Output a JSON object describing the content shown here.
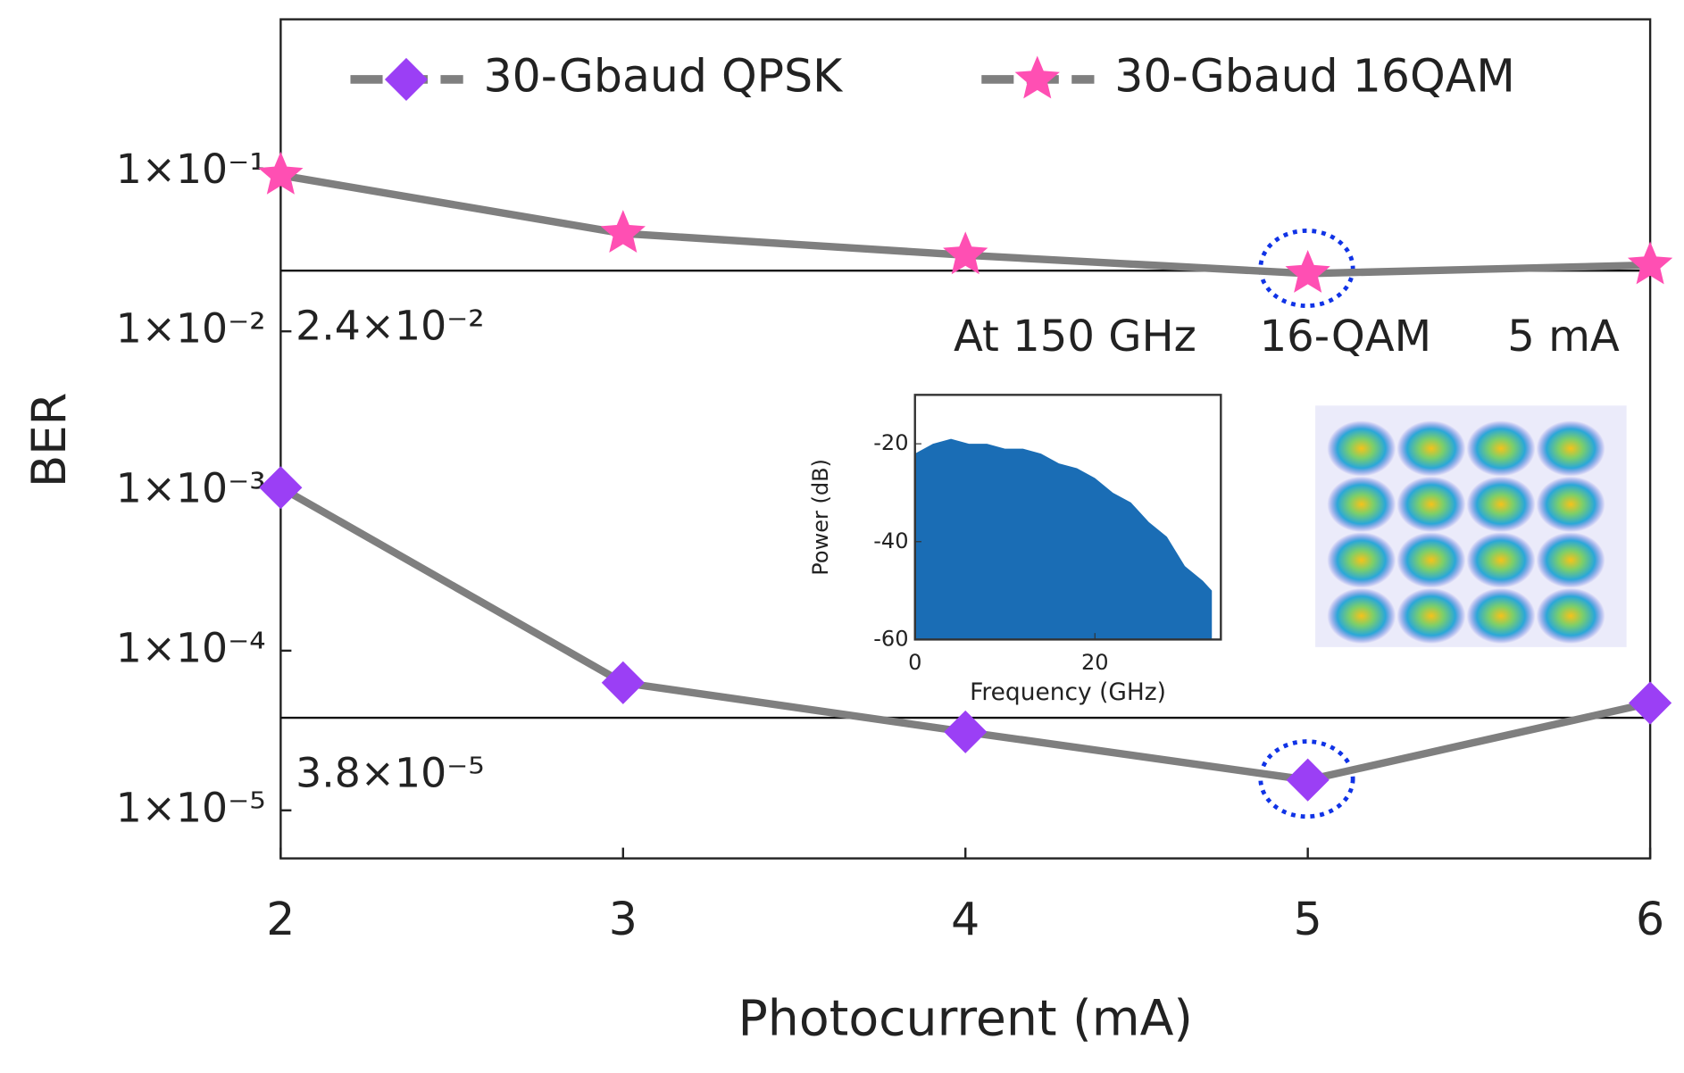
{
  "chart_data": [
    {
      "type": "line",
      "x_label": "Photocurrent (mA)",
      "y_label": "BER",
      "x": [
        2,
        3,
        4,
        5,
        6
      ],
      "xlim": [
        2,
        6
      ],
      "xticks": [
        2,
        3,
        4,
        5,
        6
      ],
      "log_y": true,
      "ylim": [
        5e-06,
        0.9
      ],
      "yticks": [
        {
          "value": 0.1,
          "label": "1×10⁻¹"
        },
        {
          "value": 0.01,
          "label": "1×10⁻²"
        },
        {
          "value": 0.001,
          "label": "1×10⁻³"
        },
        {
          "value": 0.0001,
          "label": "1×10⁻⁴"
        },
        {
          "value": 1e-05,
          "label": "1×10⁻⁵"
        }
      ],
      "legend": "top",
      "series": [
        {
          "name": "30-Gbaud QPSK",
          "marker": "diamond",
          "color": "#9b3ff5",
          "line_color": "#7f7f7f",
          "values": [
            0.00105,
            6.3e-05,
            3.1e-05,
            1.55e-05,
            4.7e-05
          ]
        },
        {
          "name": "30-Gbaud 16QAM",
          "marker": "star",
          "color": "#ff4fb3",
          "line_color": "#7f7f7f",
          "values": [
            0.095,
            0.041,
            0.03,
            0.023,
            0.026
          ]
        }
      ],
      "reference_lines": [
        {
          "value": 0.024,
          "label": "2.4×10⁻²"
        },
        {
          "value": 3.8e-05,
          "label": "3.8×10⁻⁵"
        }
      ],
      "annotations": [
        "At 150 GHz",
        "16-QAM",
        "5 mA"
      ]
    },
    {
      "type": "area",
      "x_label": "Frequency (GHz)",
      "y_label": "Power (dB)",
      "x": [
        0,
        2,
        4,
        6,
        8,
        10,
        12,
        14,
        16,
        18,
        20,
        22,
        24,
        26,
        28,
        30,
        32,
        33
      ],
      "values": [
        -22,
        -20,
        -19,
        -20,
        -20,
        -21,
        -21,
        -22,
        -24,
        -25,
        -27,
        -30,
        -32,
        -36,
        -39,
        -45,
        -48,
        -50
      ],
      "color": "#1a6db5",
      "xlim": [
        0,
        34
      ],
      "xticks": [
        0,
        20
      ],
      "ylim": [
        -60,
        -10
      ],
      "yticks": [
        -20,
        -40,
        -60
      ]
    }
  ]
}
